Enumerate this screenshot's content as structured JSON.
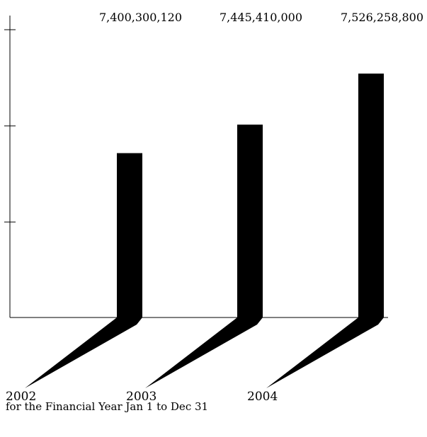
{
  "chart_data": {
    "type": "bar",
    "categories": [
      "2002",
      "2003",
      "2004"
    ],
    "values": [
      7400300120,
      7445410000,
      7526258800
    ],
    "value_labels": [
      "7,400,300,120",
      "7,445,410,000",
      "7,526,258,800"
    ],
    "title": "",
    "xlabel": "",
    "ylabel": "",
    "grid": false,
    "legend": "none",
    "colors": {
      "bar": "#000000",
      "axis": "#000000",
      "background": "#ffffff"
    }
  },
  "footnote": "for the Financial Year Jan 1 to Dec 31"
}
